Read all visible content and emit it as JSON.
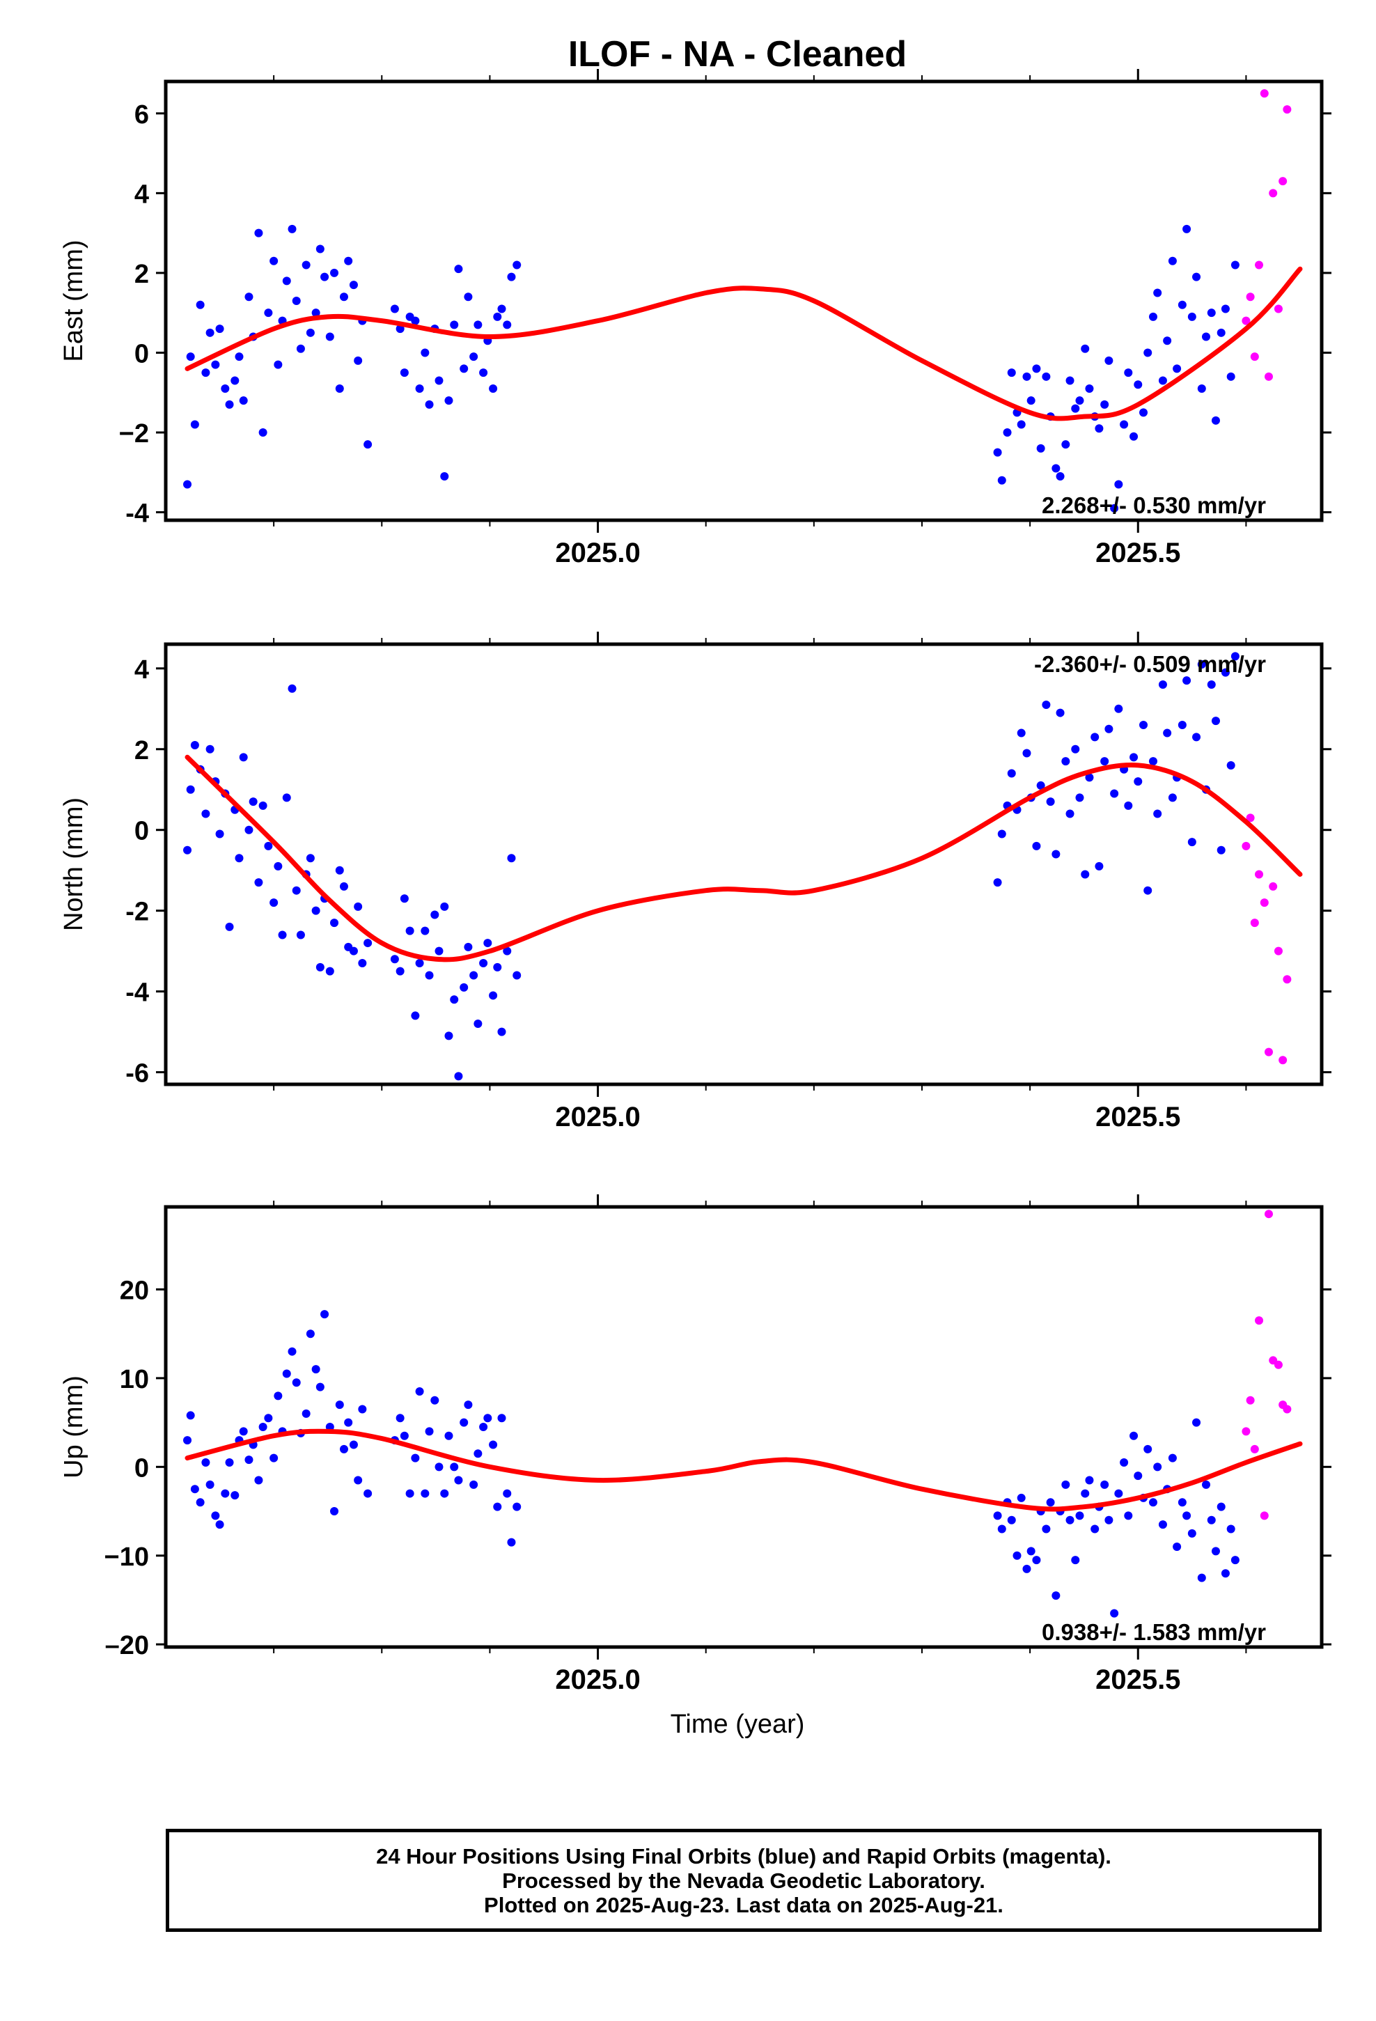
{
  "figure": {
    "title": "ILOF  - NA - Cleaned",
    "xlabel": "Time (year)",
    "caption": [
      "24 Hour Positions Using Final Orbits (blue) and Rapid Orbits (magenta).",
      "Processed by the Nevada Geodetic Laboratory.",
      "Plotted on 2025-Aug-23. Last data on 2025-Aug-21."
    ],
    "colors": {
      "final": "#0000ff",
      "rapid": "#ff00ff",
      "model": "#ff0000",
      "axis": "#000000"
    }
  },
  "chart_data": [
    {
      "type": "scatter",
      "component": "East",
      "ylabel": "East (mm)",
      "rate_label": "2.268+/- 0.530 mm/yr",
      "rate_position": "bottom-right",
      "xlim": [
        2024.6,
        2025.67
      ],
      "ylim": [
        -4.2,
        6.8
      ],
      "xticks": [
        2025.0,
        2025.5
      ],
      "xtick_labels": [
        "2025.0",
        "2025.5"
      ],
      "yticks": [
        -4,
        -2,
        0,
        2,
        4,
        6
      ],
      "ytick_labels": [
        "-4",
        "−2",
        "0",
        "2",
        "4",
        "6"
      ],
      "grid": false,
      "model_curve": {
        "x": [
          2024.62,
          2024.7,
          2024.75,
          2024.8,
          2024.9,
          2025.0,
          2025.1,
          2025.15,
          2025.2,
          2025.3,
          2025.4,
          2025.45,
          2025.5,
          2025.6,
          2025.65
        ],
        "y": [
          -0.4,
          0.6,
          0.9,
          0.8,
          0.4,
          0.8,
          1.5,
          1.6,
          1.3,
          -0.2,
          -1.5,
          -1.6,
          -1.3,
          0.6,
          2.1
        ]
      },
      "series": [
        {
          "name": "Final Orbits (blue)",
          "color": "#0000ff",
          "x": [
            2024.62,
            2024.623,
            2024.627,
            2024.632,
            2024.637,
            2024.641,
            2024.646,
            2024.65,
            2024.655,
            2024.659,
            2024.664,
            2024.668,
            2024.672,
            2024.677,
            2024.681,
            2024.686,
            2024.69,
            2024.695,
            2024.7,
            2024.704,
            2024.708,
            2024.712,
            2024.717,
            2024.721,
            2024.725,
            2024.73,
            2024.734,
            2024.739,
            2024.743,
            2024.747,
            2024.752,
            2024.756,
            2024.761,
            2024.765,
            2024.769,
            2024.774,
            2024.778,
            2024.782,
            2024.787,
            2024.812,
            2024.817,
            2024.821,
            2024.826,
            2024.831,
            2024.835,
            2024.84,
            2024.844,
            2024.849,
            2024.853,
            2024.858,
            2024.862,
            2024.867,
            2024.871,
            2024.876,
            2024.88,
            2024.885,
            2024.889,
            2024.894,
            2024.898,
            2024.903,
            2024.907,
            2024.911,
            2024.916,
            2024.92,
            2024.925,
            2025.37,
            2025.374,
            2025.379,
            2025.383,
            2025.388,
            2025.392,
            2025.397,
            2025.401,
            2025.406,
            2025.41,
            2025.415,
            2025.419,
            2025.424,
            2025.428,
            2025.433,
            2025.437,
            2025.442,
            2025.446,
            2025.451,
            2025.455,
            2025.46,
            2025.464,
            2025.469,
            2025.473,
            2025.478,
            2025.482,
            2025.487,
            2025.491,
            2025.496,
            2025.5,
            2025.505,
            2025.509,
            2025.514,
            2025.518,
            2025.523,
            2025.527,
            2025.532,
            2025.536,
            2025.541,
            2025.545,
            2025.55,
            2025.554,
            2025.559,
            2025.563,
            2025.568,
            2025.572,
            2025.577,
            2025.581,
            2025.586,
            2025.59
          ],
          "y": [
            -3.3,
            -0.1,
            -1.8,
            1.2,
            -0.5,
            0.5,
            -0.3,
            0.6,
            -0.9,
            -1.3,
            -0.7,
            -0.1,
            -1.2,
            1.4,
            0.4,
            3.0,
            -2.0,
            1.0,
            2.3,
            -0.3,
            0.8,
            1.8,
            3.1,
            1.3,
            0.1,
            2.2,
            0.5,
            1.0,
            2.6,
            1.9,
            0.4,
            2.0,
            -0.9,
            1.4,
            2.3,
            1.7,
            -0.2,
            0.8,
            -2.3,
            1.1,
            0.6,
            -0.5,
            0.9,
            0.8,
            -0.9,
            0.0,
            -1.3,
            0.6,
            -0.7,
            -3.1,
            -1.2,
            0.7,
            2.1,
            -0.4,
            1.4,
            -0.1,
            0.7,
            -0.5,
            0.3,
            -0.9,
            0.9,
            1.1,
            0.7,
            1.9,
            2.2,
            -2.5,
            -3.2,
            -2.0,
            -0.5,
            -1.5,
            -1.8,
            -0.6,
            -1.2,
            -0.4,
            -2.4,
            -0.6,
            -1.6,
            -2.9,
            -3.1,
            -2.3,
            -0.7,
            -1.4,
            -1.2,
            0.1,
            -0.9,
            -1.6,
            -1.9,
            -1.3,
            -0.2,
            -3.9,
            -3.3,
            -1.8,
            -0.5,
            -2.1,
            -0.8,
            -1.5,
            0.0,
            0.9,
            1.5,
            -0.7,
            0.3,
            2.3,
            -0.4,
            1.2,
            3.1,
            0.9,
            1.9,
            -0.9,
            0.4,
            1.0,
            -1.7,
            0.5,
            1.1,
            -0.6,
            2.2
          ]
        },
        {
          "name": "Rapid Orbits (magenta)",
          "color": "#ff00ff",
          "x": [
            2025.6,
            2025.604,
            2025.608,
            2025.612,
            2025.617,
            2025.621,
            2025.625,
            2025.63,
            2025.634,
            2025.638
          ],
          "y": [
            0.8,
            1.4,
            -0.1,
            2.2,
            6.5,
            -0.6,
            4.0,
            1.1,
            4.3,
            6.1
          ]
        }
      ]
    },
    {
      "type": "scatter",
      "component": "North",
      "ylabel": "North (mm)",
      "rate_label": "-2.360+/- 0.509 mm/yr",
      "rate_position": "top-right",
      "xlim": [
        2024.6,
        2025.67
      ],
      "ylim": [
        -6.3,
        4.6
      ],
      "xticks": [
        2025.0,
        2025.5
      ],
      "xtick_labels": [
        "2025.0",
        "2025.5"
      ],
      "yticks": [
        -6,
        -4,
        -2,
        0,
        2,
        4
      ],
      "ytick_labels": [
        "-6",
        "-4",
        "-2",
        "0",
        "2",
        "4"
      ],
      "grid": false,
      "model_curve": {
        "x": [
          2024.62,
          2024.7,
          2024.75,
          2024.8,
          2024.85,
          2024.9,
          2025.0,
          2025.1,
          2025.15,
          2025.2,
          2025.3,
          2025.4,
          2025.45,
          2025.5,
          2025.55,
          2025.6,
          2025.65
        ],
        "y": [
          1.8,
          -0.3,
          -1.7,
          -2.8,
          -3.2,
          -3.0,
          -2.0,
          -1.5,
          -1.5,
          -1.5,
          -0.7,
          0.8,
          1.4,
          1.6,
          1.2,
          0.2,
          -1.1
        ]
      },
      "series": [
        {
          "name": "Final Orbits (blue)",
          "color": "#0000ff",
          "x": [
            2024.62,
            2024.623,
            2024.627,
            2024.632,
            2024.637,
            2024.641,
            2024.646,
            2024.65,
            2024.655,
            2024.659,
            2024.664,
            2024.668,
            2024.672,
            2024.677,
            2024.681,
            2024.686,
            2024.69,
            2024.695,
            2024.7,
            2024.704,
            2024.708,
            2024.712,
            2024.717,
            2024.721,
            2024.725,
            2024.73,
            2024.734,
            2024.739,
            2024.743,
            2024.747,
            2024.752,
            2024.756,
            2024.761,
            2024.765,
            2024.769,
            2024.774,
            2024.778,
            2024.782,
            2024.787,
            2024.812,
            2024.817,
            2024.821,
            2024.826,
            2024.831,
            2024.835,
            2024.84,
            2024.844,
            2024.849,
            2024.853,
            2024.858,
            2024.862,
            2024.867,
            2024.871,
            2024.876,
            2024.88,
            2024.885,
            2024.889,
            2024.894,
            2024.898,
            2024.903,
            2024.907,
            2024.911,
            2024.916,
            2024.92,
            2024.925,
            2025.37,
            2025.374,
            2025.379,
            2025.383,
            2025.388,
            2025.392,
            2025.397,
            2025.401,
            2025.406,
            2025.41,
            2025.415,
            2025.419,
            2025.424,
            2025.428,
            2025.433,
            2025.437,
            2025.442,
            2025.446,
            2025.451,
            2025.455,
            2025.46,
            2025.464,
            2025.469,
            2025.473,
            2025.478,
            2025.482,
            2025.487,
            2025.491,
            2025.496,
            2025.5,
            2025.505,
            2025.509,
            2025.514,
            2025.518,
            2025.523,
            2025.527,
            2025.532,
            2025.536,
            2025.541,
            2025.545,
            2025.55,
            2025.554,
            2025.559,
            2025.563,
            2025.568,
            2025.572,
            2025.577,
            2025.581,
            2025.586,
            2025.59
          ],
          "y": [
            -0.5,
            1.0,
            2.1,
            1.5,
            0.4,
            2.0,
            1.2,
            -0.1,
            0.9,
            -2.4,
            0.5,
            -0.7,
            1.8,
            0.0,
            0.7,
            -1.3,
            0.6,
            -0.4,
            -1.8,
            -0.9,
            -2.6,
            0.8,
            3.5,
            -1.5,
            -2.6,
            -1.1,
            -0.7,
            -2.0,
            -3.4,
            -1.7,
            -3.5,
            -2.3,
            -1.0,
            -1.4,
            -2.9,
            -3.0,
            -1.9,
            -3.3,
            -2.8,
            -3.2,
            -3.5,
            -1.7,
            -2.5,
            -4.6,
            -3.3,
            -2.5,
            -3.6,
            -2.1,
            -3.0,
            -1.9,
            -5.1,
            -4.2,
            -6.1,
            -3.9,
            -2.9,
            -3.6,
            -4.8,
            -3.3,
            -2.8,
            -4.1,
            -3.4,
            -5.0,
            -3.0,
            -0.7,
            -3.6,
            -1.3,
            -0.1,
            0.6,
            1.4,
            0.5,
            2.4,
            1.9,
            0.8,
            -0.4,
            1.1,
            3.1,
            0.7,
            -0.6,
            2.9,
            1.7,
            0.4,
            2.0,
            0.8,
            -1.1,
            1.3,
            2.3,
            -0.9,
            1.7,
            2.5,
            0.9,
            3.0,
            1.5,
            0.6,
            1.8,
            1.2,
            2.6,
            -1.5,
            1.7,
            0.4,
            3.6,
            2.4,
            0.8,
            1.3,
            2.6,
            3.7,
            -0.3,
            2.3,
            4.1,
            1.0,
            3.6,
            2.7,
            -0.5,
            3.9,
            1.6,
            4.3
          ]
        },
        {
          "name": "Rapid Orbits (magenta)",
          "color": "#ff00ff",
          "x": [
            2025.6,
            2025.604,
            2025.608,
            2025.612,
            2025.617,
            2025.621,
            2025.625,
            2025.63,
            2025.634,
            2025.638
          ],
          "y": [
            -0.4,
            0.3,
            -2.3,
            -1.1,
            -1.8,
            -5.5,
            -1.4,
            -3.0,
            -5.7,
            -3.7
          ]
        }
      ]
    },
    {
      "type": "scatter",
      "component": "Up",
      "ylabel": "Up (mm)",
      "rate_label": "0.938+/- 1.583 mm/yr",
      "rate_position": "bottom-right",
      "xlim": [
        2024.6,
        2025.67
      ],
      "ylim": [
        -20.3,
        29.3
      ],
      "xticks": [
        2025.0,
        2025.5
      ],
      "xtick_labels": [
        "2025.0",
        "2025.5"
      ],
      "yticks": [
        -20,
        -10,
        0,
        10,
        20
      ],
      "ytick_labels": [
        "–20",
        "−10",
        "0",
        "10",
        "20"
      ],
      "grid": false,
      "model_curve": {
        "x": [
          2024.62,
          2024.7,
          2024.75,
          2024.8,
          2024.9,
          2025.0,
          2025.1,
          2025.15,
          2025.2,
          2025.3,
          2025.4,
          2025.45,
          2025.5,
          2025.55,
          2025.6,
          2025.65
        ],
        "y": [
          1.0,
          3.5,
          4.0,
          3.2,
          0.0,
          -1.5,
          -0.5,
          0.6,
          0.5,
          -2.5,
          -4.6,
          -4.5,
          -3.5,
          -1.8,
          0.5,
          2.6
        ]
      },
      "series": [
        {
          "name": "Final Orbits (blue)",
          "color": "#0000ff",
          "x": [
            2024.62,
            2024.623,
            2024.627,
            2024.632,
            2024.637,
            2024.641,
            2024.646,
            2024.65,
            2024.655,
            2024.659,
            2024.664,
            2024.668,
            2024.672,
            2024.677,
            2024.681,
            2024.686,
            2024.69,
            2024.695,
            2024.7,
            2024.704,
            2024.708,
            2024.712,
            2024.717,
            2024.721,
            2024.725,
            2024.73,
            2024.734,
            2024.739,
            2024.743,
            2024.747,
            2024.752,
            2024.756,
            2024.761,
            2024.765,
            2024.769,
            2024.774,
            2024.778,
            2024.782,
            2024.787,
            2024.812,
            2024.817,
            2024.821,
            2024.826,
            2024.831,
            2024.835,
            2024.84,
            2024.844,
            2024.849,
            2024.853,
            2024.858,
            2024.862,
            2024.867,
            2024.871,
            2024.876,
            2024.88,
            2024.885,
            2024.889,
            2024.894,
            2024.898,
            2024.903,
            2024.907,
            2024.911,
            2024.916,
            2024.92,
            2024.925,
            2025.37,
            2025.374,
            2025.379,
            2025.383,
            2025.388,
            2025.392,
            2025.397,
            2025.401,
            2025.406,
            2025.41,
            2025.415,
            2025.419,
            2025.424,
            2025.428,
            2025.433,
            2025.437,
            2025.442,
            2025.446,
            2025.451,
            2025.455,
            2025.46,
            2025.464,
            2025.469,
            2025.473,
            2025.478,
            2025.482,
            2025.487,
            2025.491,
            2025.496,
            2025.5,
            2025.505,
            2025.509,
            2025.514,
            2025.518,
            2025.523,
            2025.527,
            2025.532,
            2025.536,
            2025.541,
            2025.545,
            2025.55,
            2025.554,
            2025.559,
            2025.563,
            2025.568,
            2025.572,
            2025.577,
            2025.581,
            2025.586,
            2025.59
          ],
          "y": [
            3.0,
            5.8,
            -2.5,
            -4.0,
            0.5,
            -2.0,
            -5.5,
            -6.5,
            -3.0,
            0.5,
            -3.2,
            3.0,
            4.0,
            0.8,
            2.5,
            -1.5,
            4.5,
            5.5,
            1.0,
            8.0,
            4.0,
            10.5,
            13.0,
            9.5,
            3.8,
            6.0,
            15.0,
            11.0,
            9.0,
            17.2,
            4.5,
            -5.0,
            7.0,
            2.0,
            5.0,
            2.5,
            -1.5,
            6.5,
            -3.0,
            3.0,
            5.5,
            3.5,
            -3.0,
            1.0,
            8.5,
            -3.0,
            4.0,
            7.5,
            0.0,
            -3.0,
            3.5,
            0.0,
            -1.5,
            5.0,
            7.0,
            -2.0,
            1.5,
            4.5,
            5.5,
            2.5,
            -4.5,
            5.5,
            -3.0,
            -8.5,
            -4.5,
            -5.5,
            -7.0,
            -4.0,
            -6.0,
            -10.0,
            -3.5,
            -11.5,
            -9.5,
            -10.5,
            -5.0,
            -7.0,
            -4.0,
            -14.5,
            -5.0,
            -2.0,
            -6.0,
            -10.5,
            -5.5,
            -3.0,
            -1.5,
            -7.0,
            -4.5,
            -2.0,
            -6.0,
            -16.5,
            -3.0,
            0.5,
            -5.5,
            3.5,
            -1.0,
            -3.5,
            2.0,
            -4.0,
            0.0,
            -6.5,
            -2.5,
            1.0,
            -9.0,
            -4.0,
            -5.5,
            -7.5,
            5.0,
            -12.5,
            -2.0,
            -6.0,
            -9.5,
            -4.5,
            -12.0,
            -7.0,
            -10.5
          ]
        },
        {
          "name": "Rapid Orbits (magenta)",
          "color": "#ff00ff",
          "x": [
            2025.6,
            2025.604,
            2025.608,
            2025.612,
            2025.617,
            2025.621,
            2025.625,
            2025.63,
            2025.634,
            2025.638
          ],
          "y": [
            4.0,
            7.5,
            2.0,
            16.5,
            -5.5,
            28.5,
            12.0,
            11.5,
            7.0,
            6.5
          ]
        }
      ]
    }
  ]
}
